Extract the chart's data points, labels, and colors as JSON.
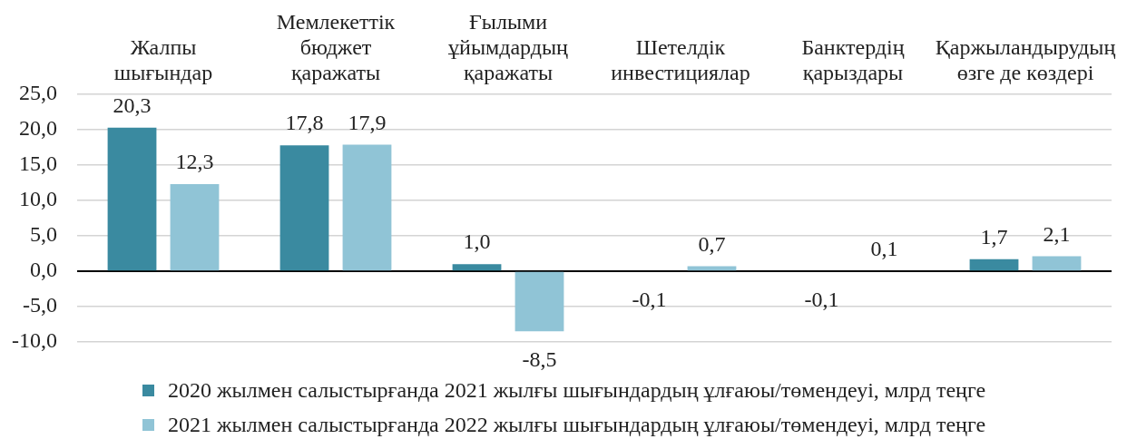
{
  "chart_data": {
    "type": "bar",
    "categories": [
      "Жалпы шығындар",
      "Мемлекеттік бюджет қаражаты",
      "Ғылыми ұйымдардың қаражаты",
      "Шетелдік инвестициялар",
      "Банктердің қарыздары",
      "Қаржыландырудың өзге де көздері"
    ],
    "series": [
      {
        "name": "2020 жылмен салыстырғанда 2021 жылғы шығындардың ұлғаюы/төмендеуі, млрд теңге",
        "color": "#3a8aa0",
        "values": [
          20.3,
          17.8,
          1.0,
          -0.1,
          -0.1,
          1.7
        ],
        "value_labels": [
          "20,3",
          "17,8",
          "1,0",
          "-0,1",
          "-0,1",
          "1,7"
        ]
      },
      {
        "name": "2021 жылмен салыстырғанда 2022 жылғы шығындардың ұлғаюы/төмендеуі, млрд теңге",
        "color": "#90c4d6",
        "values": [
          12.3,
          17.9,
          -8.5,
          0.7,
          0.1,
          2.1
        ],
        "value_labels": [
          "12,3",
          "17,9",
          "-8,5",
          "0,7",
          "0,1",
          "2,1"
        ]
      }
    ],
    "ylim": [
      -10,
      25
    ],
    "yticks": [
      {
        "value": -10,
        "label": "-10,0"
      },
      {
        "value": -5,
        "label": "-5,0"
      },
      {
        "value": 0,
        "label": "0,0"
      },
      {
        "value": 5,
        "label": "5,0"
      },
      {
        "value": 10,
        "label": "10,0"
      },
      {
        "value": 15,
        "label": "15,0"
      },
      {
        "value": 20,
        "label": "20,0"
      },
      {
        "value": 25,
        "label": "25,0"
      }
    ],
    "grid": "y",
    "legend": "bottom"
  }
}
